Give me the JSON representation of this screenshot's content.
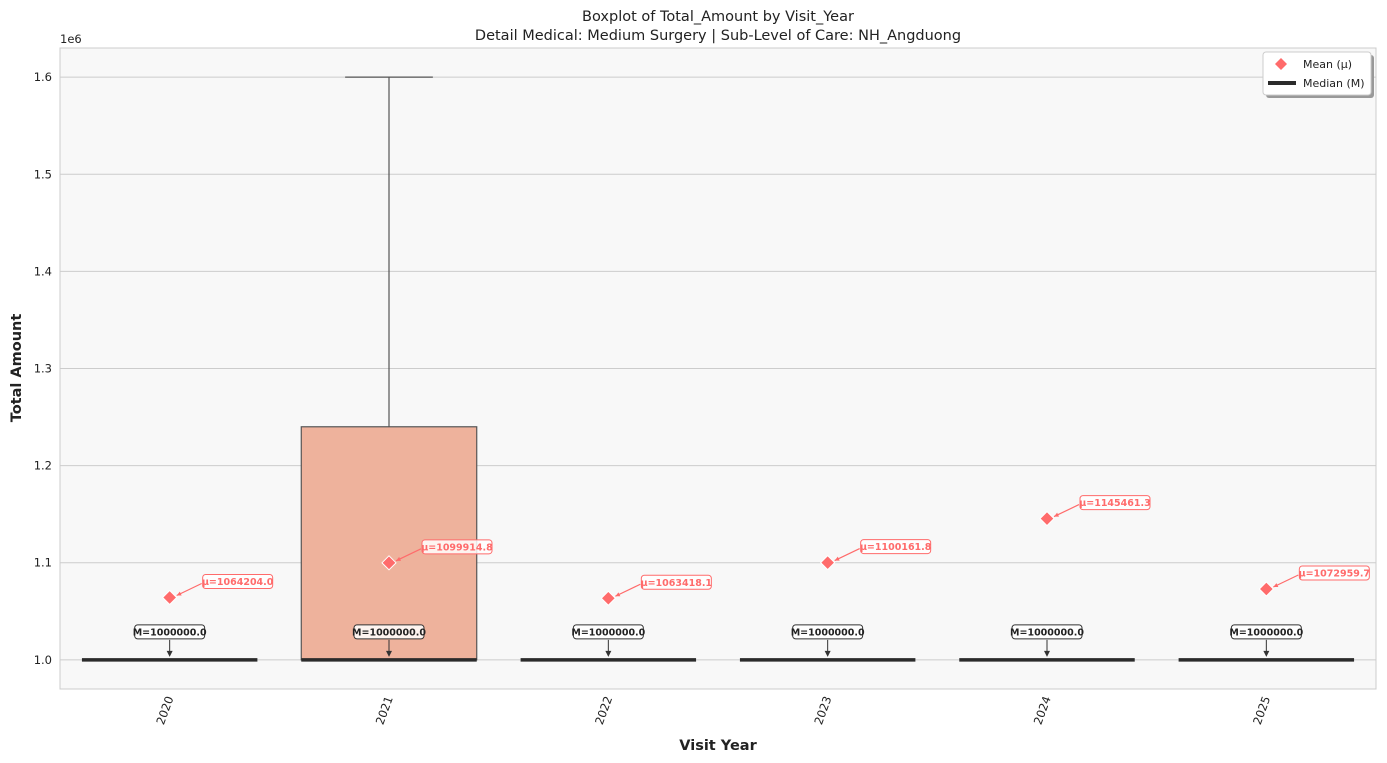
{
  "chart_data": {
    "type": "box",
    "title": "Boxplot of Total_Amount by Visit_Year",
    "subtitle": "Detail Medical: Medium Surgery | Sub-Level of Care: NH_Angduong",
    "xlabel": "Visit Year",
    "ylabel": "Total Amount",
    "y_offset_text": "1e6",
    "ylim": [
      970000,
      1630000
    ],
    "yticks": [
      1000000,
      1100000,
      1200000,
      1300000,
      1400000,
      1500000,
      1600000
    ],
    "ytick_labels": [
      "1.0",
      "1.1",
      "1.2",
      "1.3",
      "1.4",
      "1.5",
      "1.6"
    ],
    "grid": "horizontal",
    "legend_position": "top-right",
    "colors": {
      "box_fill": "#eeb29c",
      "box_edge": "#555555",
      "median": "#2b2b2b",
      "mean": "#ff6b6b",
      "plot_bg": "#f8f8f8",
      "grid": "#cccccc"
    },
    "categories": [
      "2020",
      "2021",
      "2022",
      "2023",
      "2024",
      "2025"
    ],
    "boxes": [
      {
        "year": "2020",
        "q1": 1000000,
        "median": 1000000,
        "q3": 1000000,
        "whisker_low": 1000000,
        "whisker_high": 1000000,
        "mean": 1064204.0,
        "mean_label": "μ=1064204.0",
        "median_label": "M=1000000.0"
      },
      {
        "year": "2021",
        "q1": 1000000,
        "median": 1000000,
        "q3": 1240000,
        "whisker_low": 1000000,
        "whisker_high": 1600000,
        "mean": 1099914.8,
        "mean_label": "μ=1099914.8",
        "median_label": "M=1000000.0"
      },
      {
        "year": "2022",
        "q1": 1000000,
        "median": 1000000,
        "q3": 1000000,
        "whisker_low": 1000000,
        "whisker_high": 1000000,
        "mean": 1063418.1,
        "mean_label": "μ=1063418.1",
        "median_label": "M=1000000.0"
      },
      {
        "year": "2023",
        "q1": 1000000,
        "median": 1000000,
        "q3": 1000000,
        "whisker_low": 1000000,
        "whisker_high": 1000000,
        "mean": 1100161.8,
        "mean_label": "μ=1100161.8",
        "median_label": "M=1000000.0"
      },
      {
        "year": "2024",
        "q1": 1000000,
        "median": 1000000,
        "q3": 1000000,
        "whisker_low": 1000000,
        "whisker_high": 1000000,
        "mean": 1145461.3,
        "mean_label": "μ=1145461.3",
        "median_label": "M=1000000.0"
      },
      {
        "year": "2025",
        "q1": 1000000,
        "median": 1000000,
        "q3": 1000000,
        "whisker_low": 1000000,
        "whisker_high": 1000000,
        "mean": 1072959.7,
        "mean_label": "μ=1072959.7",
        "median_label": "M=1000000.0"
      }
    ],
    "legend": [
      {
        "key": "mean",
        "label": "Mean (μ)",
        "icon": "diamond-icon"
      },
      {
        "key": "median",
        "label": "Median (M)",
        "icon": "thick-line-icon"
      }
    ]
  }
}
